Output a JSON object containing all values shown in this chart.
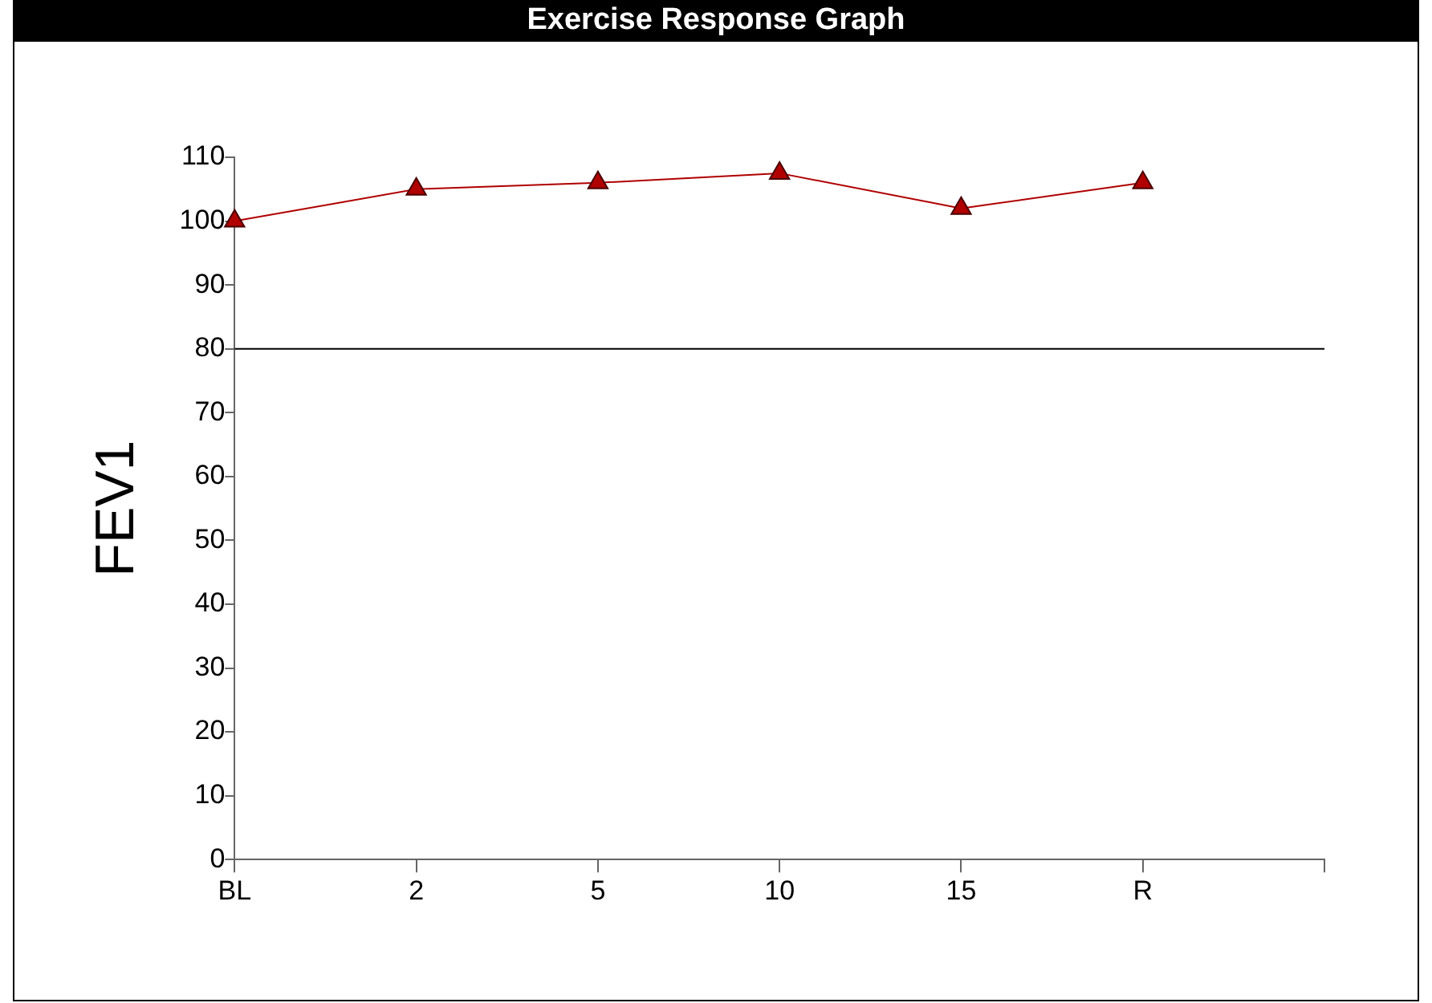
{
  "chart_data": {
    "type": "line",
    "title": "Exercise Response Graph",
    "ylabel": "FEV1",
    "categories": [
      "BL",
      "2",
      "5",
      "10",
      "15",
      "R",
      null
    ],
    "series": [
      {
        "color": "#b00000",
        "values": [
          100,
          105,
          106,
          107.5,
          102,
          106,
          null
        ]
      }
    ],
    "ylim": [
      0,
      110
    ],
    "yticks": [
      0,
      10,
      20,
      30,
      40,
      50,
      60,
      70,
      80,
      90,
      100,
      110
    ],
    "ref_lines": [
      {
        "axis": "y",
        "value": 80,
        "color": "#000000"
      }
    ],
    "marker": "triangle",
    "grid": false,
    "legend": false
  }
}
